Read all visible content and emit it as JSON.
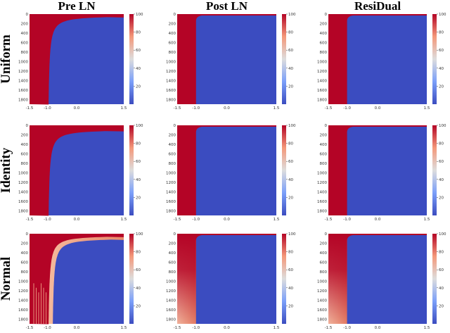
{
  "chart_data": {
    "type": "heatmap",
    "columns": [
      "Pre LN",
      "Post LN",
      "ResiDual"
    ],
    "rows": [
      "Uniform",
      "Identity",
      "Normal"
    ],
    "x_ticks": [
      "-1.5",
      "-1.0",
      "0.0",
      "1.5"
    ],
    "xlim": [
      -1.5,
      1.5
    ],
    "y_ticks": [
      "0",
      "200",
      "400",
      "600",
      "800",
      "1000",
      "1200",
      "1400",
      "1600",
      "1800"
    ],
    "ylim": [
      0,
      1900
    ],
    "colorbar_ticks": [
      "20",
      "40",
      "60",
      "80",
      "100"
    ],
    "colorbar_range": [
      0,
      100
    ],
    "colormap": [
      "#3b4cc0",
      "#dddddd",
      "#b40426"
    ],
    "colors": {
      "high": "#b40426",
      "low": "#3b4cc0"
    }
  }
}
